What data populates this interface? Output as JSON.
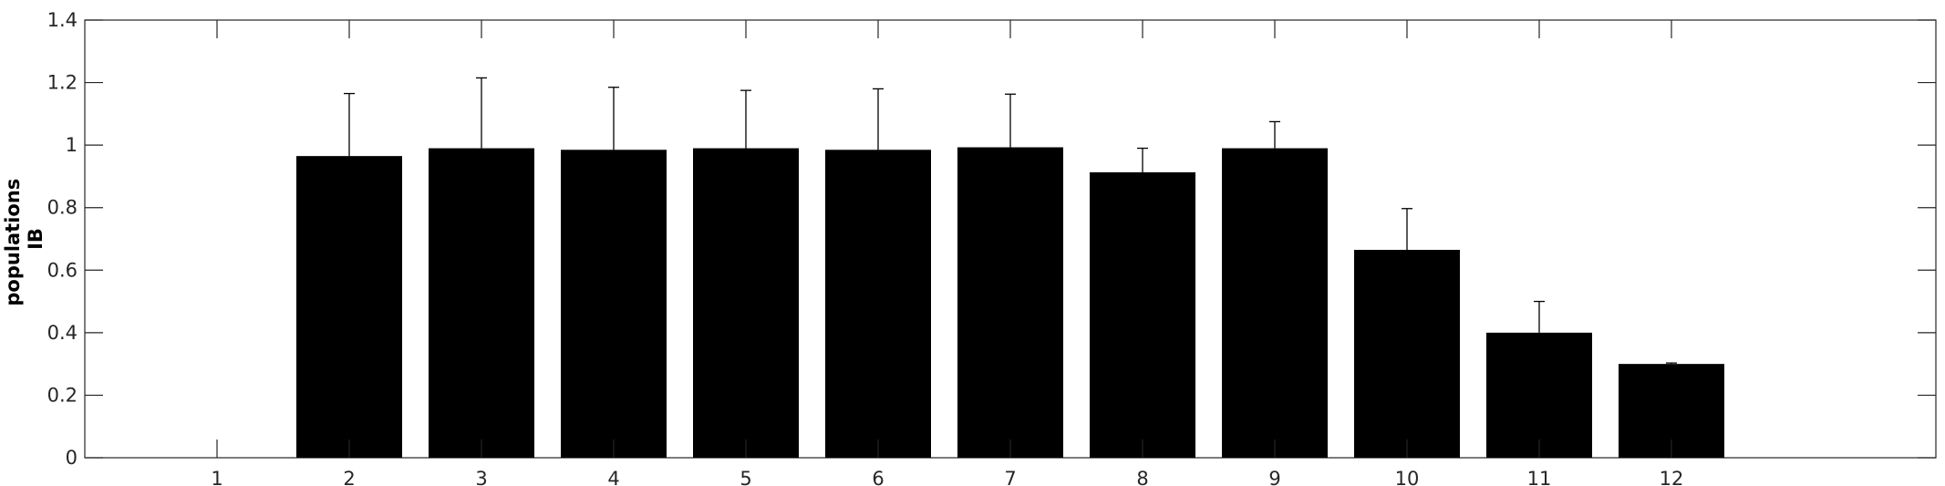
{
  "chart_data": {
    "type": "bar",
    "title": "",
    "xlabel": "",
    "ylabel_lines": [
      "populations",
      "IB"
    ],
    "categories": [
      "1",
      "2",
      "3",
      "4",
      "5",
      "6",
      "7",
      "8",
      "9",
      "10",
      "11",
      "12"
    ],
    "values": [
      0,
      0.965,
      0.99,
      0.985,
      0.99,
      0.985,
      0.993,
      0.913,
      0.99,
      0.665,
      0.4,
      0.3
    ],
    "error_upper": [
      0,
      1.165,
      1.215,
      1.185,
      1.175,
      1.18,
      1.163,
      0.99,
      1.075,
      0.797,
      0.5,
      0.303
    ],
    "ylim": [
      0,
      1.4
    ],
    "yticks": [
      "0",
      "0.2",
      "0.4",
      "0.6",
      "0.8",
      "1",
      "1.2",
      "1.4"
    ],
    "xlim": [
      0,
      14
    ],
    "grid": false,
    "bar_color": "#000000"
  }
}
